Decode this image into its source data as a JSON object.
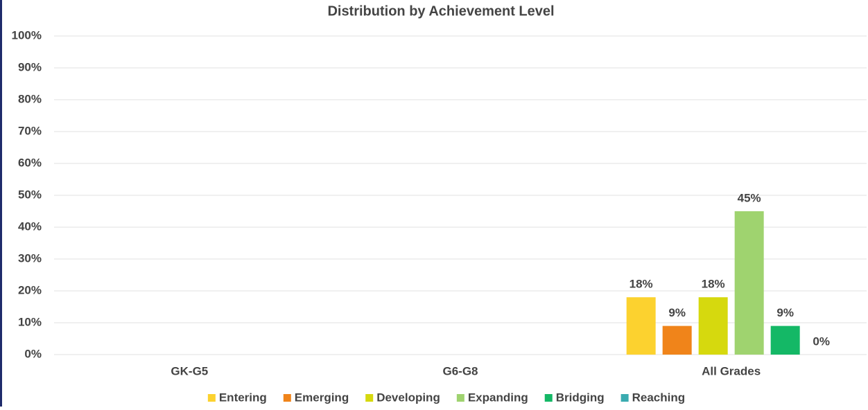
{
  "chart_data": {
    "type": "bar",
    "title": "Distribution by Achievement Level",
    "categories": [
      "GK-G5",
      "G6-G8",
      "All Grades"
    ],
    "series": [
      {
        "name": "Entering",
        "color": "#fcd22f",
        "values": [
          null,
          null,
          18
        ],
        "value_labels": [
          null,
          null,
          "18%"
        ]
      },
      {
        "name": "Emerging",
        "color": "#f0841a",
        "values": [
          null,
          null,
          9
        ],
        "value_labels": [
          null,
          null,
          "9%"
        ]
      },
      {
        "name": "Developing",
        "color": "#d6d90e",
        "values": [
          null,
          null,
          18
        ],
        "value_labels": [
          null,
          null,
          "18%"
        ]
      },
      {
        "name": "Expanding",
        "color": "#9fd36f",
        "values": [
          null,
          null,
          45
        ],
        "value_labels": [
          null,
          null,
          "45%"
        ]
      },
      {
        "name": "Bridging",
        "color": "#14b866",
        "values": [
          null,
          null,
          9
        ],
        "value_labels": [
          null,
          null,
          "9%"
        ]
      },
      {
        "name": "Reaching",
        "color": "#3aabb0",
        "values": [
          null,
          null,
          0
        ],
        "value_labels": [
          null,
          null,
          "0%"
        ]
      }
    ],
    "ylim": [
      0,
      100
    ],
    "yticks": [
      {
        "value": 0,
        "label": "0%"
      },
      {
        "value": 10,
        "label": "10%"
      },
      {
        "value": 20,
        "label": "20%"
      },
      {
        "value": 30,
        "label": "30%"
      },
      {
        "value": 40,
        "label": "40%"
      },
      {
        "value": 50,
        "label": "50%"
      },
      {
        "value": 60,
        "label": "60%"
      },
      {
        "value": 70,
        "label": "70%"
      },
      {
        "value": 80,
        "label": "80%"
      },
      {
        "value": 90,
        "label": "90%"
      },
      {
        "value": 100,
        "label": "100%"
      }
    ],
    "grid": true,
    "legend": "bottom"
  }
}
